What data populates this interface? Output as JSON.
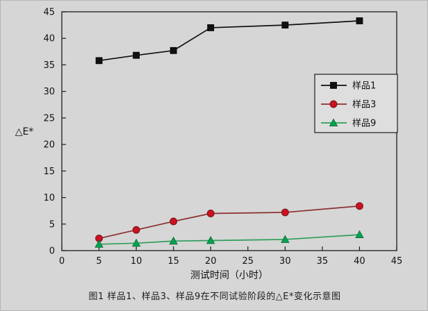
{
  "chart_data": {
    "type": "line",
    "title": "",
    "xlabel": "测试时间（小时）",
    "ylabel": "△E*",
    "xlim": [
      0,
      45
    ],
    "ylim": [
      0,
      45
    ],
    "xticks": [
      0,
      5,
      10,
      15,
      20,
      25,
      30,
      35,
      40,
      45
    ],
    "yticks": [
      0,
      5,
      10,
      15,
      20,
      25,
      30,
      35,
      40,
      45
    ],
    "grid": false,
    "legend_position": "right-middle",
    "x": [
      5,
      10,
      15,
      20,
      30,
      40
    ],
    "series": [
      {
        "name": "样品1",
        "marker": "square",
        "marker_color": "#111111",
        "line_color": "#111111",
        "values": [
          35.8,
          36.8,
          37.7,
          42.0,
          42.5,
          43.3
        ]
      },
      {
        "name": "样品3",
        "marker": "circle",
        "marker_color": "#cc1122",
        "line_color": "#8b2f2f",
        "values": [
          2.3,
          3.9,
          5.5,
          7.0,
          7.2,
          8.4
        ]
      },
      {
        "name": "样品9",
        "marker": "triangle",
        "marker_color": "#00a551",
        "line_color": "#2f9e5a",
        "values": [
          1.2,
          1.4,
          1.8,
          1.9,
          2.1,
          3.0
        ]
      }
    ],
    "caption": "图1 样品1、样品3、样品9在不同试验阶段的△E*变化示意图"
  }
}
